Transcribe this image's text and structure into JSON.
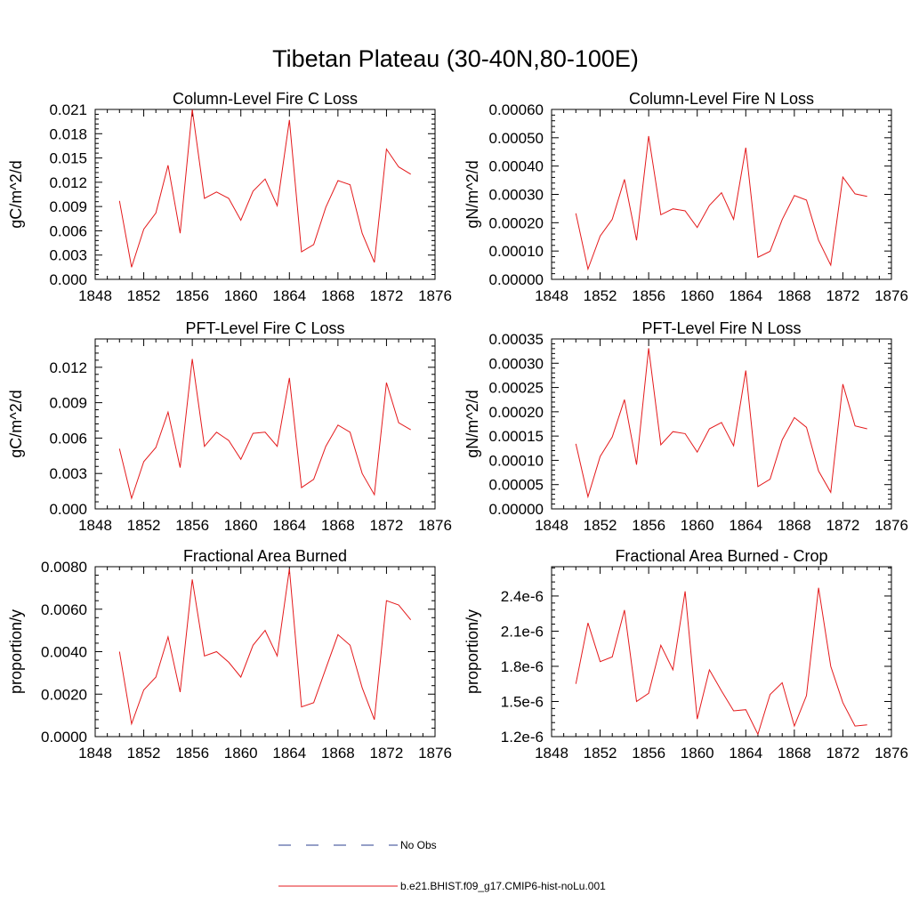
{
  "figure": {
    "title": "Tibetan Plateau (30-40N,80-100E)"
  },
  "legend": {
    "items": [
      {
        "label": "No Obs",
        "color": "#2b3f8f",
        "style": "dashed"
      },
      {
        "label": "b.e21.BHIST.f09_g17.CMIP6-hist-noLu.001",
        "color": "#e41a1c",
        "style": "solid"
      }
    ]
  },
  "chart_data": [
    {
      "type": "line",
      "title": "Column-Level Fire C Loss",
      "ylabel": "gC/m^2/d",
      "xlim": [
        1848,
        1876
      ],
      "ylim": [
        0,
        0.021
      ],
      "xticks": [
        1848,
        1852,
        1856,
        1860,
        1864,
        1868,
        1872,
        1876
      ],
      "yticks": [
        "0.000",
        "0.003",
        "0.006",
        "0.009",
        "0.012",
        "0.015",
        "0.018",
        "0.021"
      ],
      "x": [
        1850,
        1851,
        1852,
        1853,
        1854,
        1855,
        1856,
        1857,
        1858,
        1859,
        1860,
        1861,
        1862,
        1863,
        1864,
        1865,
        1866,
        1867,
        1868,
        1869,
        1870,
        1871,
        1872,
        1873,
        1874
      ],
      "series": [
        {
          "color": "#e41a1c",
          "values": [
            0.0097,
            0.0015,
            0.0062,
            0.0082,
            0.0141,
            0.0057,
            0.021,
            0.01,
            0.0108,
            0.01,
            0.0073,
            0.0109,
            0.0124,
            0.0091,
            0.0197,
            0.0034,
            0.0043,
            0.0089,
            0.0122,
            0.0117,
            0.0057,
            0.0021,
            0.0161,
            0.0139,
            0.013
          ]
        }
      ]
    },
    {
      "type": "line",
      "title": "Column-Level Fire N Loss",
      "ylabel": "gN/m^2/d",
      "xlim": [
        1848,
        1876
      ],
      "ylim": [
        0,
        0.0006
      ],
      "xticks": [
        1848,
        1852,
        1856,
        1860,
        1864,
        1868,
        1872,
        1876
      ],
      "yticks": [
        "0.00000",
        "0.00010",
        "0.00020",
        "0.00030",
        "0.00040",
        "0.00050",
        "0.00060"
      ],
      "x": [
        1850,
        1851,
        1852,
        1853,
        1854,
        1855,
        1856,
        1857,
        1858,
        1859,
        1860,
        1861,
        1862,
        1863,
        1864,
        1865,
        1866,
        1867,
        1868,
        1869,
        1870,
        1871,
        1872,
        1873,
        1874
      ],
      "series": [
        {
          "color": "#e41a1c",
          "values": [
            0.000233,
            3.6e-05,
            0.000153,
            0.000212,
            0.000353,
            0.000138,
            0.000506,
            0.000228,
            0.000249,
            0.000242,
            0.000183,
            0.000261,
            0.000306,
            0.000212,
            0.000465,
            7.8e-05,
            9.9e-05,
            0.000211,
            0.000296,
            0.00028,
            0.000138,
            5e-05,
            0.000361,
            0.000302,
            0.000293
          ]
        }
      ]
    },
    {
      "type": "line",
      "title": "PFT-Level Fire C Loss",
      "ylabel": "gC/m^2/d",
      "xlim": [
        1848,
        1876
      ],
      "ylim": [
        0,
        0.0144
      ],
      "xticks": [
        1848,
        1852,
        1856,
        1860,
        1864,
        1868,
        1872,
        1876
      ],
      "yticks": [
        "0.000",
        "0.003",
        "0.006",
        "0.009",
        "0.012"
      ],
      "x": [
        1850,
        1851,
        1852,
        1853,
        1854,
        1855,
        1856,
        1857,
        1858,
        1859,
        1860,
        1861,
        1862,
        1863,
        1864,
        1865,
        1866,
        1867,
        1868,
        1869,
        1870,
        1871,
        1872,
        1873,
        1874
      ],
      "series": [
        {
          "color": "#e41a1c",
          "values": [
            0.0051,
            0.0009,
            0.004,
            0.0052,
            0.0082,
            0.0035,
            0.0127,
            0.0053,
            0.0065,
            0.0058,
            0.0042,
            0.0064,
            0.0065,
            0.0053,
            0.0111,
            0.0018,
            0.0025,
            0.0053,
            0.0071,
            0.0065,
            0.003,
            0.0012,
            0.0107,
            0.0073,
            0.0067
          ]
        }
      ]
    },
    {
      "type": "line",
      "title": "PFT-Level Fire N Loss",
      "ylabel": "gN/m^2/d",
      "xlim": [
        1848,
        1876
      ],
      "ylim": [
        0,
        0.00035
      ],
      "xticks": [
        1848,
        1852,
        1856,
        1860,
        1864,
        1868,
        1872,
        1876
      ],
      "yticks": [
        "0.00000",
        "0.00005",
        "0.00010",
        "0.00015",
        "0.00020",
        "0.00025",
        "0.00030",
        "0.00035"
      ],
      "x": [
        1850,
        1851,
        1852,
        1853,
        1854,
        1855,
        1856,
        1857,
        1858,
        1859,
        1860,
        1861,
        1862,
        1863,
        1864,
        1865,
        1866,
        1867,
        1868,
        1869,
        1870,
        1871,
        1872,
        1873,
        1874
      ],
      "series": [
        {
          "color": "#e41a1c",
          "values": [
            0.000134,
            2.5e-05,
            0.000108,
            0.000148,
            0.000225,
            9.1e-05,
            0.000331,
            0.000132,
            0.000159,
            0.000155,
            0.000117,
            0.000165,
            0.000178,
            0.00013,
            0.000285,
            4.6e-05,
            6.1e-05,
            0.000142,
            0.000188,
            0.000168,
            7.8e-05,
            3.4e-05,
            0.000257,
            0.000171,
            0.000165
          ]
        }
      ]
    },
    {
      "type": "line",
      "title": "Fractional Area Burned",
      "ylabel": "proportion/y",
      "xlim": [
        1848,
        1876
      ],
      "ylim": [
        0,
        0.008
      ],
      "xticks": [
        1848,
        1852,
        1856,
        1860,
        1864,
        1868,
        1872,
        1876
      ],
      "yticks": [
        "0.0000",
        "0.0020",
        "0.0040",
        "0.0060",
        "0.0080"
      ],
      "x": [
        1850,
        1851,
        1852,
        1853,
        1854,
        1855,
        1856,
        1857,
        1858,
        1859,
        1860,
        1861,
        1862,
        1863,
        1864,
        1865,
        1866,
        1867,
        1868,
        1869,
        1870,
        1871,
        1872,
        1873,
        1874
      ],
      "series": [
        {
          "color": "#e41a1c",
          "values": [
            0.004,
            0.0006,
            0.0022,
            0.0028,
            0.0047,
            0.0021,
            0.0074,
            0.0038,
            0.004,
            0.0035,
            0.0028,
            0.0043,
            0.005,
            0.0038,
            0.0079,
            0.0014,
            0.0016,
            0.0032,
            0.0048,
            0.0043,
            0.0023,
            0.0008,
            0.0064,
            0.0062,
            0.0055
          ]
        }
      ]
    },
    {
      "type": "line",
      "title": "Fractional Area Burned - Crop",
      "ylabel": "proportion/y",
      "xlim": [
        1848,
        1876
      ],
      "ylim": [
        1.2e-06,
        2.65e-06
      ],
      "xticks": [
        1848,
        1852,
        1856,
        1860,
        1864,
        1868,
        1872,
        1876
      ],
      "yticks": [
        "1.2e-6",
        "1.5e-6",
        "1.8e-6",
        "2.1e-6",
        "2.4e-6"
      ],
      "ytick_values": [
        1.2e-06,
        1.5e-06,
        1.8e-06,
        2.1e-06,
        2.4e-06
      ],
      "x": [
        1850,
        1851,
        1852,
        1853,
        1854,
        1855,
        1856,
        1857,
        1858,
        1859,
        1860,
        1861,
        1862,
        1863,
        1864,
        1865,
        1866,
        1867,
        1868,
        1869,
        1870,
        1871,
        1872,
        1873,
        1874
      ],
      "series": [
        {
          "color": "#e41a1c",
          "values": [
            1.65e-06,
            2.17e-06,
            1.84e-06,
            1.88e-06,
            2.28e-06,
            1.5e-06,
            1.57e-06,
            1.98e-06,
            1.77e-06,
            2.44e-06,
            1.35e-06,
            1.77e-06,
            1.59e-06,
            1.42e-06,
            1.43e-06,
            1.22e-06,
            1.56e-06,
            1.66e-06,
            1.29e-06,
            1.55e-06,
            2.47e-06,
            1.8e-06,
            1.49e-06,
            1.29e-06,
            1.3e-06
          ]
        }
      ]
    }
  ]
}
